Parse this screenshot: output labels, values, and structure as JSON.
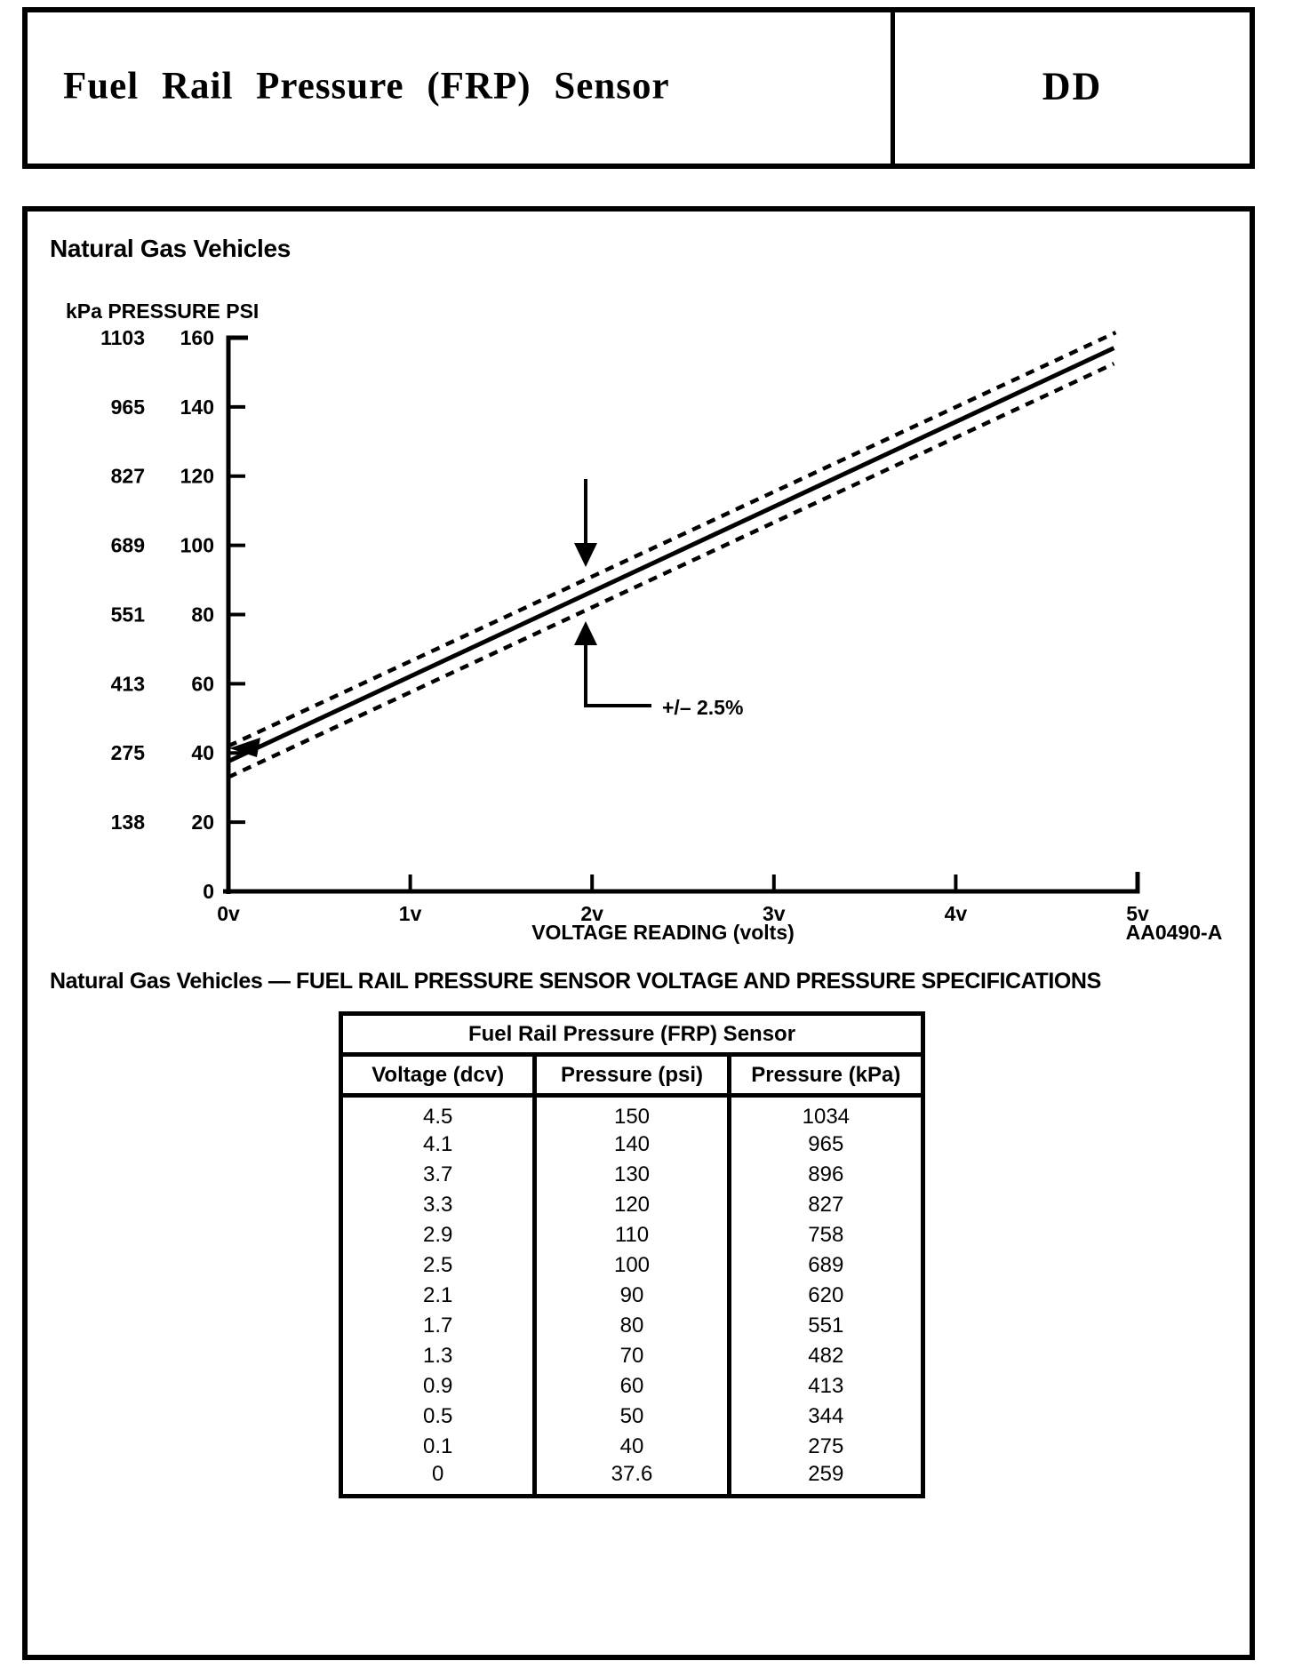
{
  "header": {
    "title": "Fuel Rail Pressure (FRP) Sensor",
    "code": "DD"
  },
  "sections": {
    "chart_heading": "Natural Gas Vehicles",
    "table_heading": "Natural Gas Vehicles — FUEL RAIL PRESSURE SENSOR VOLTAGE AND PRESSURE SPECIFICATIONS"
  },
  "chart_data": {
    "type": "line",
    "title": "Natural Gas Vehicles",
    "corner_axis_label": "kPa PRESSURE PSI",
    "xlabel": "VOLTAGE READING (volts)",
    "figure_code": "AA0490-A",
    "annotation": "+/– 2.5%",
    "xlim": [
      0,
      5
    ],
    "ylim_psi": [
      0,
      160
    ],
    "x_ticks": [
      "0v",
      "1v",
      "2v",
      "3v",
      "4v",
      "5v"
    ],
    "y_ticks_psi": [
      0,
      20,
      40,
      60,
      80,
      100,
      120,
      140,
      160
    ],
    "y_ticks_kpa": [
      138,
      275,
      413,
      551,
      689,
      827,
      965,
      1103
    ],
    "grid": false,
    "series": [
      {
        "name": "nominal",
        "style": "solid",
        "x": [
          0,
          4.87
        ],
        "y_psi": [
          37.6,
          157.0
        ]
      },
      {
        "name": "upper-tolerance",
        "style": "dashed",
        "x": [
          0,
          4.88
        ],
        "y_psi": [
          42.0,
          161.5
        ]
      },
      {
        "name": "lower-tolerance",
        "style": "dashed",
        "x": [
          0,
          4.87
        ],
        "y_psi": [
          33.0,
          152.5
        ]
      }
    ]
  },
  "table": {
    "title": "Fuel Rail Pressure (FRP) Sensor",
    "columns": [
      "Voltage (dcv)",
      "Pressure (psi)",
      "Pressure (kPa)"
    ],
    "rows": [
      [
        "4.5",
        "150",
        "1034"
      ],
      [
        "4.1",
        "140",
        "965"
      ],
      [
        "3.7",
        "130",
        "896"
      ],
      [
        "3.3",
        "120",
        "827"
      ],
      [
        "2.9",
        "110",
        "758"
      ],
      [
        "2.5",
        "100",
        "689"
      ],
      [
        "2.1",
        "90",
        "620"
      ],
      [
        "1.7",
        "80",
        "551"
      ],
      [
        "1.3",
        "70",
        "482"
      ],
      [
        "0.9",
        "60",
        "413"
      ],
      [
        "0.5",
        "50",
        "344"
      ],
      [
        "0.1",
        "40",
        "275"
      ],
      [
        "0",
        "37.6",
        "259"
      ]
    ]
  }
}
